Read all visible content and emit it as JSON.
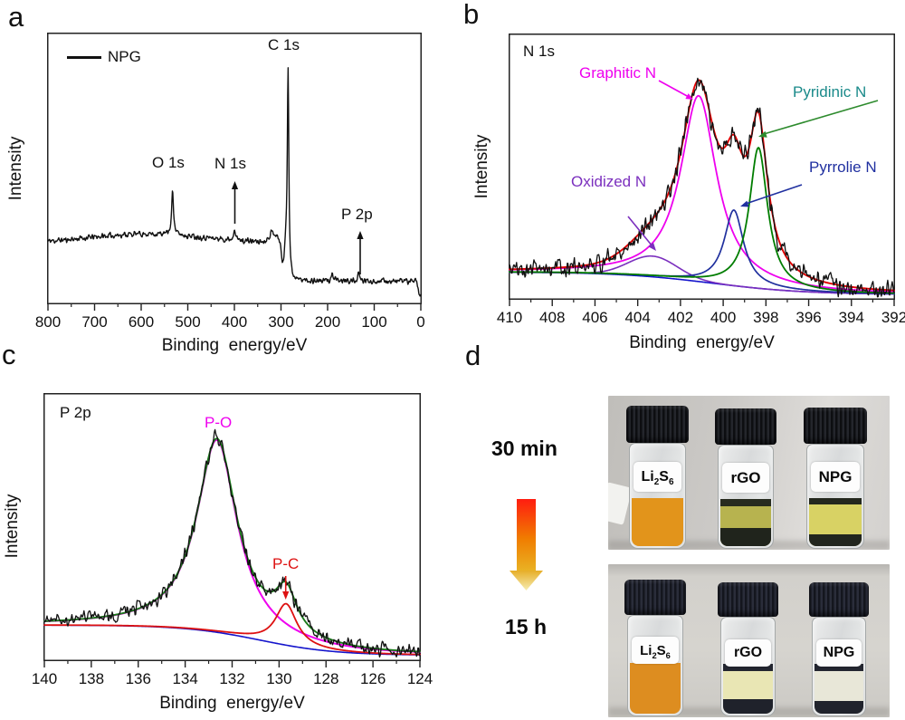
{
  "figure": {
    "panel_letters": [
      "a",
      "b",
      "c",
      "d"
    ]
  },
  "chart_data": [
    {
      "panel": "a",
      "type": "line",
      "title": "XPS survey spectrum",
      "legend": [
        "NPG"
      ],
      "xlabel": "Binding  energy/eV",
      "ylabel": "Intensity",
      "x_range": [
        800,
        0
      ],
      "x_ticks": [
        800,
        700,
        600,
        500,
        400,
        300,
        200,
        100,
        0
      ],
      "minor_tick_step": 50,
      "grid": false,
      "baseline": {
        "left": 0.225,
        "right": 0.086,
        "center": 287,
        "width": 2.2
      },
      "peaks": [
        {
          "id": "bg_hump",
          "shape": "gauss",
          "c": 585,
          "w": 180,
          "h": 0.035
        },
        {
          "id": "O1s",
          "shape": "lorentz",
          "c": 532.5,
          "w": 2.4,
          "h": 0.165
        },
        {
          "id": "N1s",
          "shape": "lorentz",
          "c": 399.8,
          "w": 2.2,
          "h": 0.05
        },
        {
          "id": "plasmon",
          "shape": "gauss",
          "c": 318,
          "w": 11,
          "h": 0.035
        },
        {
          "id": "predip",
          "shape": "gauss",
          "c": 296,
          "w": 4.5,
          "h": -0.095
        },
        {
          "id": "C1s",
          "shape": "lorentz",
          "c": 284.8,
          "w": 2.0,
          "h": 0.75
        },
        {
          "id": "P2s",
          "shape": "lorentz",
          "c": 190,
          "w": 2.4,
          "h": 0.026
        },
        {
          "id": "P2p",
          "shape": "lorentz",
          "c": 133,
          "w": 2.2,
          "h": 0.026
        },
        {
          "id": "edge",
          "shape": "gauss",
          "c": 2,
          "w": 5,
          "h": -0.06
        }
      ],
      "curves": [
        {
          "name": "NPG survey",
          "color": "#111111",
          "width": 1.4,
          "peaks": "all",
          "noise": 0.009,
          "seed": 11,
          "samples": 900
        }
      ],
      "annotations": [
        {
          "text": "O 1s",
          "x": 532,
          "color": "#111111"
        },
        {
          "text": "N 1s",
          "x": 400,
          "color": "#111111",
          "arrow_color": "#111111"
        },
        {
          "text": "C 1s",
          "x": 285,
          "color": "#111111"
        },
        {
          "text": "P 2p",
          "x": 133,
          "color": "#111111",
          "arrow_color": "#111111"
        }
      ]
    },
    {
      "panel": "b",
      "type": "line",
      "title": "N 1s",
      "xlabel": "Binding  energy/eV",
      "ylabel": "Intensity",
      "x_range": [
        410,
        392
      ],
      "x_ticks": [
        410,
        408,
        406,
        404,
        402,
        400,
        398,
        396,
        394,
        392
      ],
      "minor_tick_step": 1,
      "grid": false,
      "baseline": {
        "left": 0.105,
        "right": 0.02,
        "center": 400.5,
        "width": 2.2
      },
      "peaks": [
        {
          "id": "oxidized",
          "shape": "gauss",
          "c": 403.3,
          "w": 1.6,
          "h": 0.078
        },
        {
          "id": "graphitic",
          "shape": "lorentz",
          "c": 401.15,
          "w": 1.02,
          "h": 0.7
        },
        {
          "id": "pyrrolic",
          "shape": "lorentz",
          "c": 399.5,
          "w": 0.55,
          "h": 0.285
        },
        {
          "id": "pyridinic",
          "shape": "lorentz",
          "c": 398.35,
          "w": 0.52,
          "h": 0.53
        }
      ],
      "curves": [
        {
          "name": "background",
          "color": "#1414cc",
          "width": 1.6,
          "peaks": []
        },
        {
          "name": "Oxidized N",
          "color": "#7b2fbe",
          "width": 1.6,
          "peaks": [
            "oxidized"
          ]
        },
        {
          "name": "Graphitic N",
          "color": "#ee00ee",
          "width": 1.8,
          "peaks": [
            "graphitic"
          ]
        },
        {
          "name": "Pyrrolic N",
          "color": "#20309e",
          "width": 1.7,
          "peaks": [
            "pyrrolic"
          ]
        },
        {
          "name": "Pyridinic N",
          "color": "#007d00",
          "width": 1.8,
          "peaks": [
            "pyridinic"
          ]
        },
        {
          "name": "fit envelope",
          "color": "#e00000",
          "width": 1.9,
          "peaks": "all"
        },
        {
          "name": "raw data",
          "color": "#111111",
          "width": 1.3,
          "peaks": "all",
          "noise": 0.033,
          "seed": 5,
          "samples": 600
        }
      ],
      "annotations": [
        {
          "text": "Graphitic N",
          "color": "#ee00ee",
          "arrow_color": "#ee00ee"
        },
        {
          "text": "Pyridinic N",
          "color": "#1a8a8a",
          "arrow_color": "#2e8b2e"
        },
        {
          "text": "Pyrrolie N",
          "color": "#2030a0",
          "arrow_color": "#2030a0"
        },
        {
          "text": "Oxidized N",
          "color": "#7b2fbe",
          "arrow_color": "#7b2fbe"
        }
      ]
    },
    {
      "panel": "c",
      "type": "line",
      "title": "P 2p",
      "xlabel": "Binding  energy/eV",
      "ylabel": "Intensity",
      "x_range": [
        140,
        124
      ],
      "x_ticks": [
        140,
        138,
        136,
        134,
        132,
        130,
        128,
        126,
        124
      ],
      "minor_tick_step": 1,
      "grid": false,
      "baseline": {
        "left": 0.135,
        "right": 0.022,
        "center": 130.8,
        "width": 1.6
      },
      "peaks": [
        {
          "id": "p_o",
          "shape": "lorentz",
          "c": 132.65,
          "w": 1.05,
          "h": 0.72
        },
        {
          "id": "p_c",
          "shape": "lorentz",
          "c": 129.7,
          "w": 0.55,
          "h": 0.155
        }
      ],
      "curves": [
        {
          "name": "background",
          "color": "#1414cc",
          "width": 1.6,
          "peaks": []
        },
        {
          "name": "P-O",
          "color": "#ee00ee",
          "width": 2.0,
          "peaks": [
            "p_o"
          ]
        },
        {
          "name": "P-C",
          "color": "#dd1111",
          "width": 1.8,
          "peaks": [
            "p_c"
          ]
        },
        {
          "name": "fit envelope",
          "color": "#1a7a1a",
          "width": 1.9,
          "peaks": "all"
        },
        {
          "name": "raw data",
          "color": "#111111",
          "width": 1.3,
          "peaks": "all",
          "noise": 0.024,
          "seed": 9,
          "samples": 560
        }
      ],
      "annotations": [
        {
          "text": "P-O",
          "color": "#ee00ee"
        },
        {
          "text": "P-C",
          "color": "#dd1111",
          "arrow_color": "#dd1111"
        }
      ]
    }
  ],
  "photo_panel": {
    "time_labels": [
      "30 min",
      "15 h"
    ],
    "arrow_colors": {
      "shaft_top": "#ff1d10",
      "shaft_mid": "#f07d00",
      "shaft_bottom": "#e9b325",
      "head_top": "#e6ae28",
      "head_tip": "#f6edb2"
    },
    "photos": [
      {
        "name": "after 30 min",
        "vials": [
          {
            "label_parts": [
              "Li",
              "2",
              "S",
              "6"
            ],
            "liquid": "#e2941b",
            "film_top": null,
            "sediment": null
          },
          {
            "label": "rGO",
            "liquid": "#b7b34f",
            "film_top": "#272b1f",
            "sediment": "#20241c"
          },
          {
            "label": "NPG",
            "liquid": "#d8d264",
            "film_top": "#24281e",
            "sediment": "#22261e"
          }
        ]
      },
      {
        "name": "after 15 h",
        "vials": [
          {
            "label_parts": [
              "Li",
              "2",
              "S",
              "6"
            ],
            "liquid": "#dd8d20",
            "film_top": null,
            "sediment": null
          },
          {
            "label": "rGO",
            "liquid": "#e9e6b4",
            "film_top": "#232630",
            "sediment": "#1f222b"
          },
          {
            "label": "NPG",
            "liquid": "#e8e7d8",
            "film_top": "#232630",
            "sediment": "#20232c"
          }
        ]
      }
    ]
  }
}
